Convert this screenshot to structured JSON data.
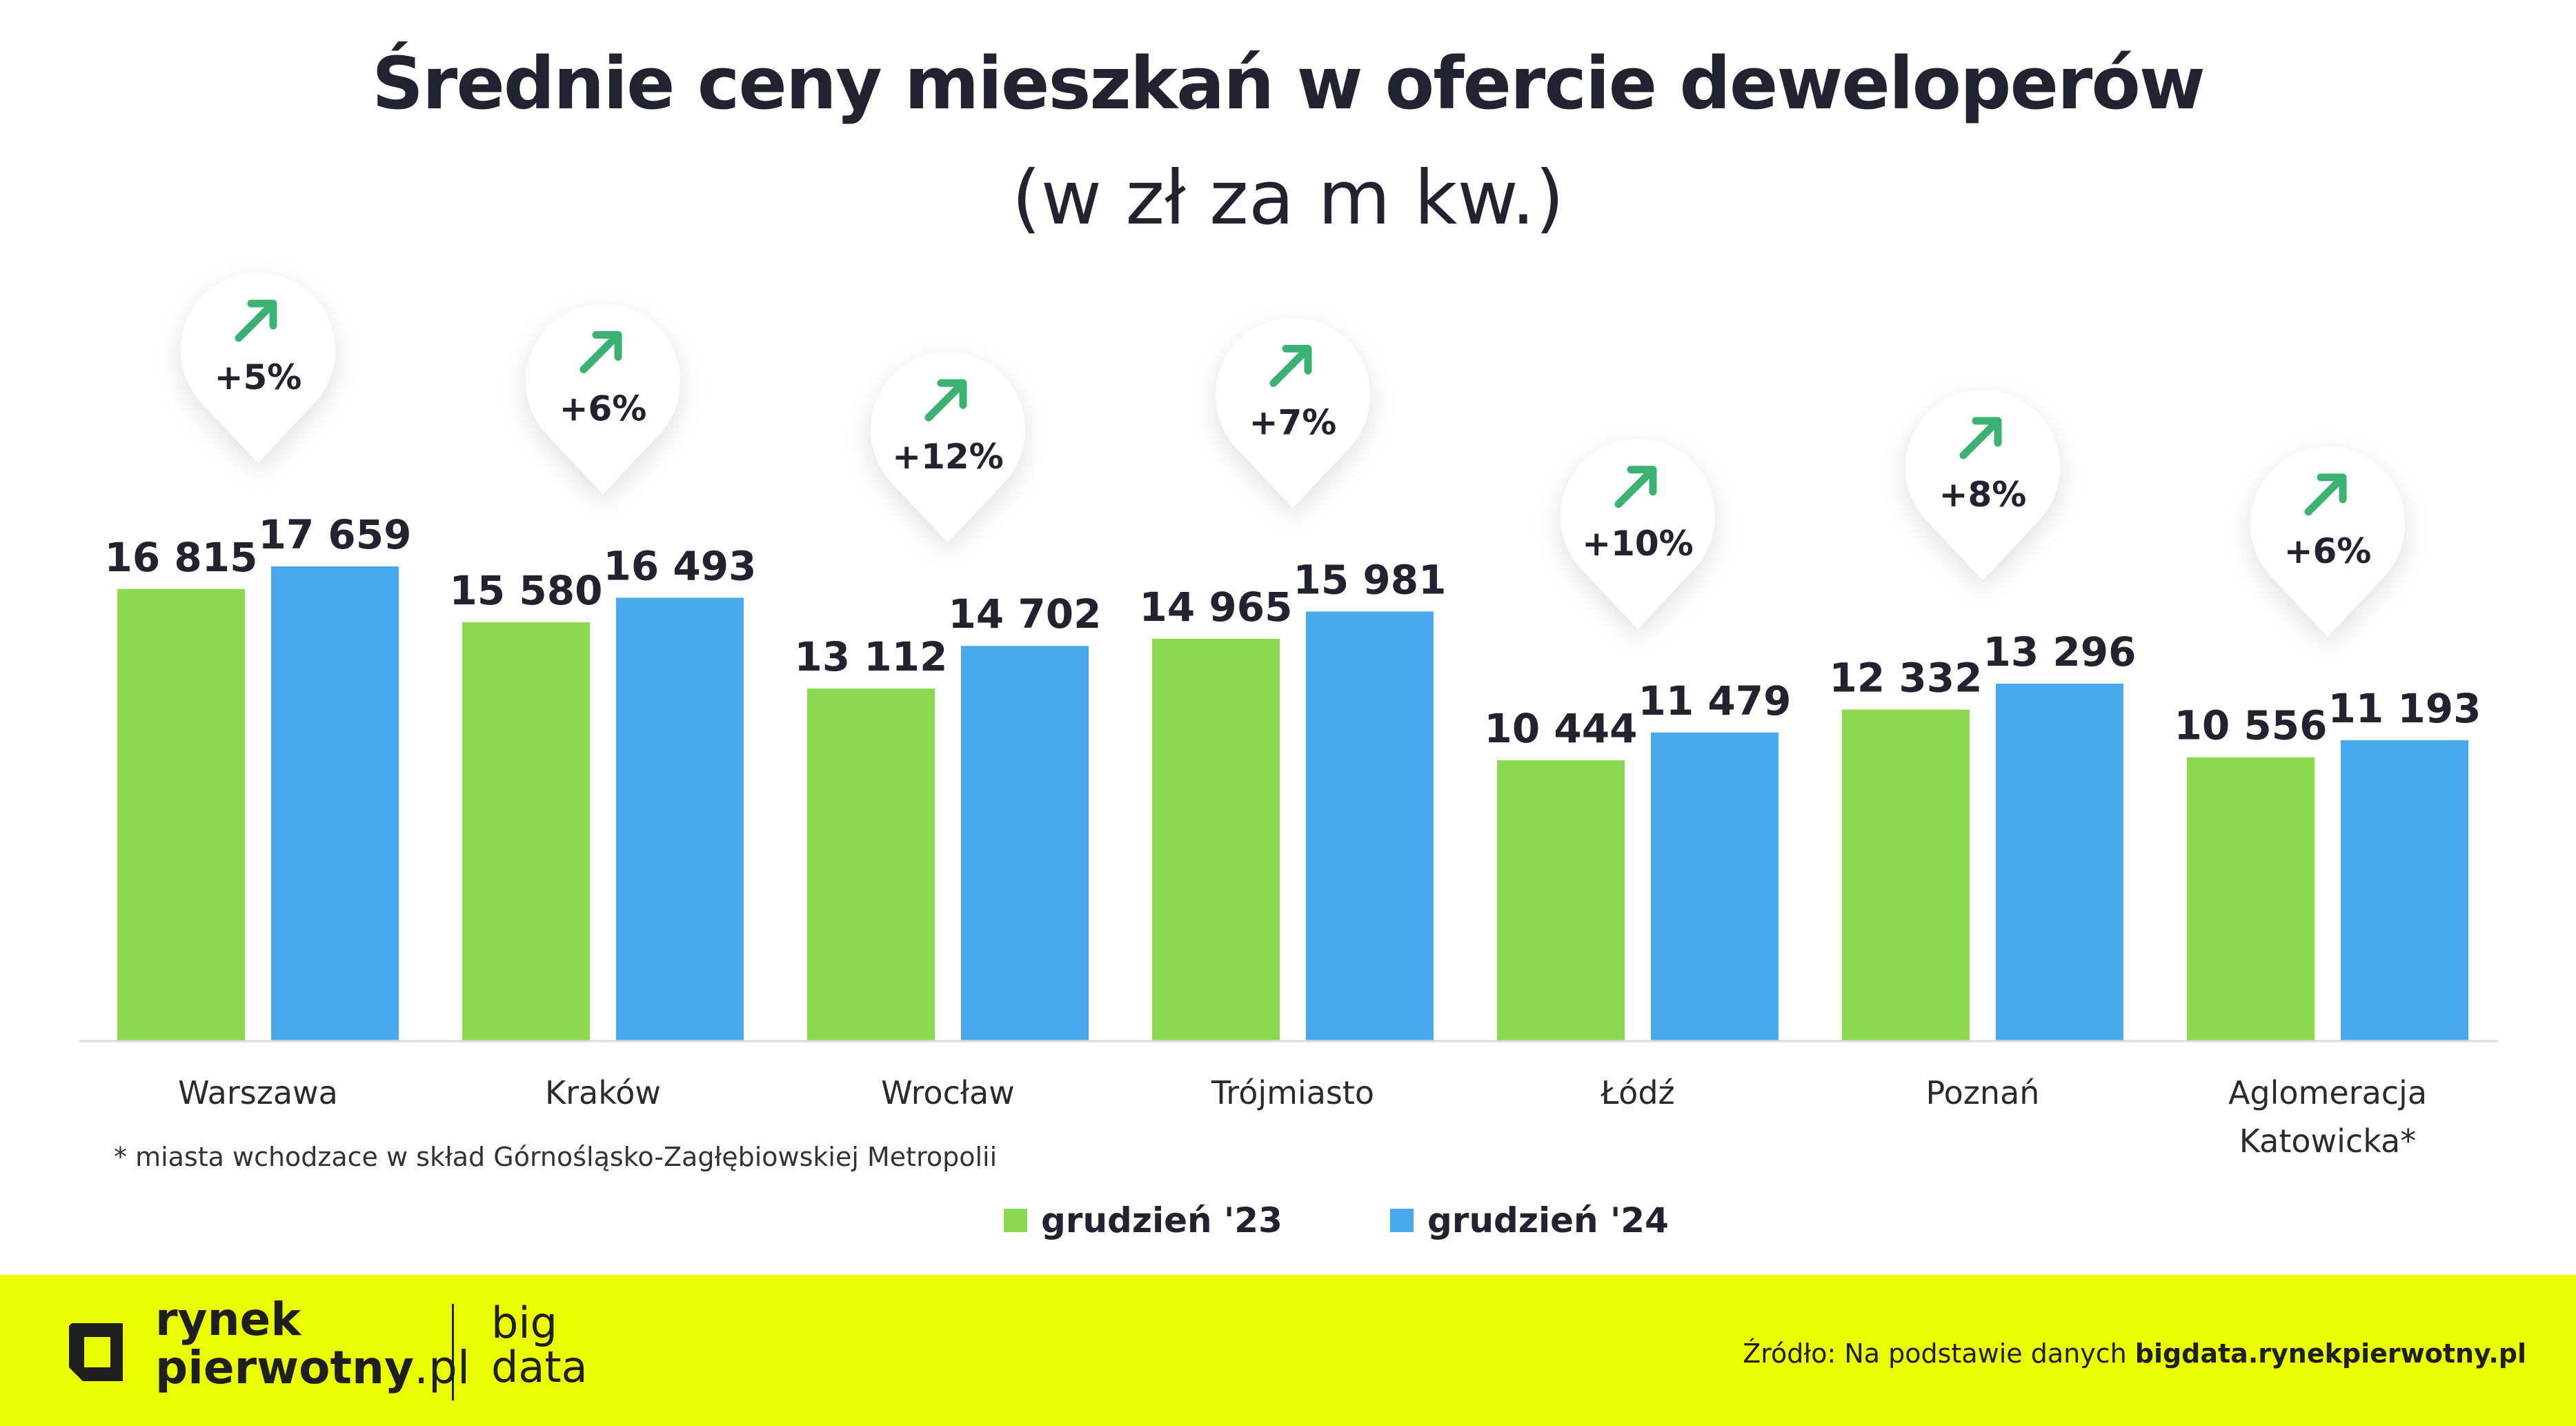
{
  "chart_data": {
    "type": "bar",
    "title": "Średnie ceny mieszkań w ofercie deweloperów",
    "subtitle": "(w zł za m kw.)",
    "categories": [
      "Warszawa",
      "Kraków",
      "Wrocław",
      "Trójmiasto",
      "Łódź",
      "Poznań",
      "Aglomeracja Katowicka*"
    ],
    "category_lines": [
      [
        "Warszawa"
      ],
      [
        "Kraków"
      ],
      [
        "Wrocław"
      ],
      [
        "Trójmiasto"
      ],
      [
        "Łódź"
      ],
      [
        "Poznań"
      ],
      [
        "Aglomeracja",
        "Katowicka*"
      ]
    ],
    "series": [
      {
        "name": "grudzień '23",
        "color": "#8cd84e",
        "values": [
          16815,
          15580,
          13112,
          14965,
          10444,
          12332,
          10556
        ],
        "labels": [
          "16 815",
          "15 580",
          "13 112",
          "14 965",
          "10 444",
          "12 332",
          "10 556"
        ]
      },
      {
        "name": "grudzień '24",
        "color": "#4aa9ea",
        "values": [
          17659,
          16493,
          14702,
          15981,
          11479,
          13296,
          11193
        ],
        "labels": [
          "17 659",
          "16 493",
          "14 702",
          "15 981",
          "11 479",
          "13 296",
          "11 193"
        ]
      }
    ],
    "changes": [
      "+5%",
      "+6%",
      "+12%",
      "+7%",
      "+10%",
      "+8%",
      "+6%"
    ],
    "change_color": "#3bb273",
    "ylim": [
      0,
      17659
    ],
    "grid": false,
    "legend_position": "bottom"
  },
  "footnote": "* miasta wchodzace w skład Górnośląsko-Zagłębiowskiej Metropolii",
  "legend": {
    "items": [
      {
        "label": "grudzień '23",
        "color": "#8cd84e"
      },
      {
        "label": "grudzień '24",
        "color": "#4aa9ea"
      }
    ]
  },
  "footer": {
    "brand_line1": "rynek",
    "brand_line2": "pierwotny",
    "brand_suffix": ".pl",
    "product_line1": "big",
    "product_line2": "data",
    "source_prefix": "Źródło: Na podstawie danych ",
    "source_link": "bigdata.rynekpierwotny.pl",
    "background": "#e9ff00",
    "logo_icon": "square-bracket-logo-icon"
  }
}
